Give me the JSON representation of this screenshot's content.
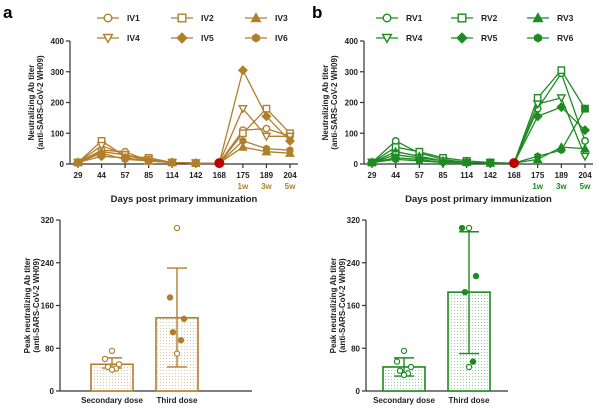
{
  "panels": [
    {
      "letter": "a",
      "color": "#B07F2C",
      "marker_fill": "#B07F2C"
    },
    {
      "letter": "b",
      "color": "#1E8A22",
      "marker_fill": "#1E8A22"
    }
  ],
  "chart_data": [
    {
      "type": "line",
      "panel": "a",
      "xlabel": "Days post primary immunization",
      "ylabel": [
        "Neutralizing Ab titer",
        "(anti-SARS-CoV-2 WH09)"
      ],
      "categories": [
        "29",
        "44",
        "57",
        "85",
        "114",
        "142",
        "168",
        "175",
        "189",
        "204"
      ],
      "annotations": [
        {
          "x": "175",
          "text": "1w"
        },
        {
          "x": "189",
          "text": "3w"
        },
        {
          "x": "204",
          "text": "5w"
        }
      ],
      "highlight_point": {
        "x": "168",
        "color": "#C00000"
      },
      "ylim": [
        0,
        400
      ],
      "yticks": [
        0,
        100,
        200,
        300,
        400
      ],
      "legend_position": "top",
      "series": [
        {
          "name": "IV1",
          "marker": "circle-open",
          "values": [
            5,
            45,
            40,
            10,
            5,
            3,
            3,
            110,
            115,
            90
          ]
        },
        {
          "name": "IV2",
          "marker": "square-open",
          "values": [
            5,
            75,
            25,
            20,
            5,
            3,
            3,
            100,
            180,
            100
          ]
        },
        {
          "name": "IV3",
          "marker": "triangle-up-filled",
          "values": [
            5,
            40,
            30,
            10,
            5,
            3,
            3,
            55,
            40,
            35
          ]
        },
        {
          "name": "IV4",
          "marker": "triangle-down-open",
          "values": [
            5,
            60,
            30,
            15,
            5,
            3,
            3,
            180,
            90,
            90
          ]
        },
        {
          "name": "IV5",
          "marker": "diamond-filled",
          "values": [
            5,
            25,
            20,
            10,
            5,
            3,
            3,
            305,
            155,
            75
          ]
        },
        {
          "name": "IV6",
          "marker": "hexagon-filled",
          "values": [
            5,
            35,
            15,
            10,
            5,
            3,
            3,
            75,
            50,
            45
          ]
        }
      ]
    },
    {
      "type": "line",
      "panel": "b",
      "xlabel": "Days post primary immunization",
      "ylabel": [
        "Neutralizing Ab titer",
        "(anti-SARS-CoV-2 WH09)"
      ],
      "categories": [
        "29",
        "44",
        "57",
        "85",
        "114",
        "142",
        "168",
        "175",
        "189",
        "204"
      ],
      "annotations": [
        {
          "x": "175",
          "text": "1w"
        },
        {
          "x": "189",
          "text": "3w"
        },
        {
          "x": "204",
          "text": "5w"
        }
      ],
      "highlight_point": {
        "x": "168",
        "color": "#C00000"
      },
      "ylim": [
        0,
        400
      ],
      "yticks": [
        0,
        100,
        200,
        300,
        400
      ],
      "legend_position": "top",
      "series": [
        {
          "name": "RV1",
          "marker": "circle-open",
          "values": [
            5,
            75,
            35,
            15,
            5,
            3,
            3,
            180,
            295,
            75
          ]
        },
        {
          "name": "RV2",
          "marker": "square-open",
          "values": [
            5,
            55,
            40,
            20,
            10,
            5,
            3,
            215,
            305,
            180
          ]
        },
        {
          "name": "RV3",
          "marker": "triangle-up-filled",
          "values": [
            5,
            40,
            25,
            10,
            5,
            3,
            3,
            15,
            55,
            50
          ]
        },
        {
          "name": "RV4",
          "marker": "triangle-down-open",
          "values": [
            5,
            30,
            20,
            10,
            5,
            3,
            3,
            195,
            215,
            25
          ]
        },
        {
          "name": "RV5",
          "marker": "diamond-filled",
          "values": [
            5,
            20,
            15,
            5,
            5,
            3,
            3,
            155,
            185,
            110
          ]
        },
        {
          "name": "RV6",
          "marker": "hexagon-filled",
          "values": [
            5,
            15,
            10,
            5,
            5,
            3,
            3,
            25,
            45,
            180
          ]
        }
      ]
    },
    {
      "type": "bar",
      "panel": "a",
      "categories": [
        "Secondary dose",
        "Third dose"
      ],
      "ylabel": [
        "Peak neutralizing Ab titer",
        "(anti-SARS-CoV-2 WH09)"
      ],
      "ylim": [
        0,
        320
      ],
      "yticks": [
        0,
        80,
        160,
        240,
        320
      ],
      "values": [
        50,
        137
      ],
      "error": [
        [
          43,
          62
        ],
        [
          45,
          230
        ]
      ],
      "points": [
        [
          75,
          60,
          50,
          45,
          42,
          40
        ],
        [
          305,
          175,
          135,
          110,
          95,
          70
        ]
      ]
    },
    {
      "type": "bar",
      "panel": "b",
      "categories": [
        "Secondary dose",
        "Third dose"
      ],
      "ylabel": [
        "Peak neutralizing Ab titer",
        "(anti-SARS-CoV-2 WH09)"
      ],
      "ylim": [
        0,
        320
      ],
      "yticks": [
        0,
        80,
        160,
        240,
        320
      ],
      "values": [
        45,
        185
      ],
      "error": [
        [
          28,
          62
        ],
        [
          70,
          298
        ]
      ],
      "points": [
        [
          75,
          55,
          45,
          38,
          33,
          30
        ],
        [
          305,
          305,
          215,
          185,
          55,
          45
        ]
      ]
    }
  ]
}
